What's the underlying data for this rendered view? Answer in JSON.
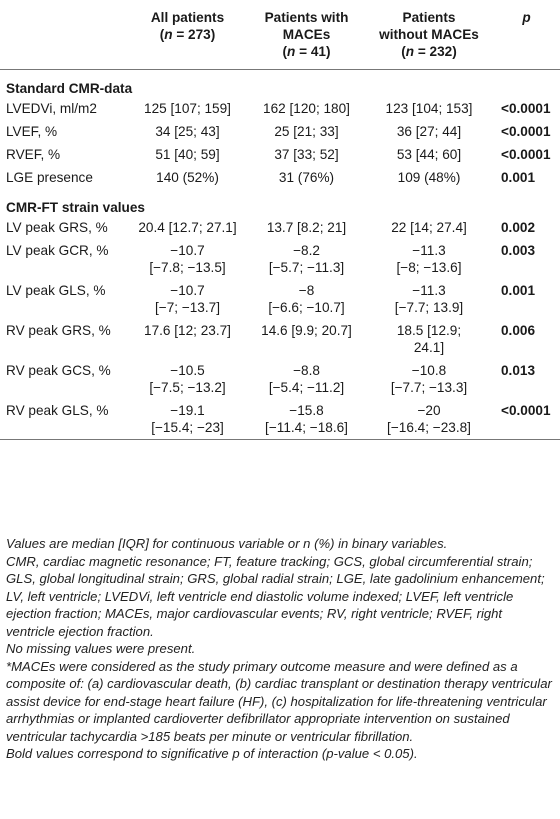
{
  "header": {
    "col1": {
      "line1": "All patients",
      "line2": "(n = 273)"
    },
    "col2": {
      "line1": "Patients with",
      "line2": "MACEs",
      "line3": "(n = 41)"
    },
    "col3": {
      "line1": "Patients",
      "line2": "without MACEs",
      "line3": "(n = 232)"
    },
    "col4": "p"
  },
  "sections": [
    {
      "title": "Standard CMR-data",
      "rows": [
        {
          "label": "LVEDVi, ml/m2",
          "all": [
            "125 [107; 159]"
          ],
          "with": [
            "162 [120; 180]"
          ],
          "without": [
            "123 [104; 153]"
          ],
          "p": "<0.0001"
        },
        {
          "label": "LVEF, %",
          "all": [
            "34 [25; 43]"
          ],
          "with": [
            "25 [21; 33]"
          ],
          "without": [
            "36 [27; 44]"
          ],
          "p": "<0.0001"
        },
        {
          "label": "RVEF, %",
          "all": [
            "51 [40; 59]"
          ],
          "with": [
            "37 [33; 52]"
          ],
          "without": [
            "53 [44; 60]"
          ],
          "p": "<0.0001"
        },
        {
          "label": "LGE presence",
          "all": [
            "140 (52%)"
          ],
          "with": [
            "31 (76%)"
          ],
          "without": [
            "109 (48%)"
          ],
          "p": "0.001"
        }
      ]
    },
    {
      "title": "CMR-FT strain values",
      "rows": [
        {
          "label": "LV peak GRS, %",
          "all": [
            "20.4 [12.7; 27.1]"
          ],
          "with": [
            "13.7 [8.2; 21]"
          ],
          "without": [
            "22 [14; 27.4]"
          ],
          "p": "0.002"
        },
        {
          "label": "LV peak GCR, %",
          "all": [
            "−10.7",
            "[−7.8; −13.5]"
          ],
          "with": [
            "−8.2",
            "[−5.7; −11.3]"
          ],
          "without": [
            "−11.3",
            "[−8; −13.6]"
          ],
          "p": "0.003"
        },
        {
          "label": "LV peak GLS, %",
          "all": [
            "−10.7",
            "[−7; −13.7]"
          ],
          "with": [
            "−8",
            "[−6.6; −10.7]"
          ],
          "without": [
            "−11.3",
            "[−7.7; 13.9]"
          ],
          "p": "0.001"
        },
        {
          "label": "RV peak GRS, %",
          "all": [
            "17.6 [12; 23.7]"
          ],
          "with": [
            "14.6 [9.9; 20.7]"
          ],
          "without": [
            "18.5 [12.9;",
            "24.1]"
          ],
          "p": "0.006"
        },
        {
          "label": "RV peak GCS, %",
          "all": [
            "−10.5",
            "[−7.5; −13.2]"
          ],
          "with": [
            "−8.8",
            "[−5.4; −11.2]"
          ],
          "without": [
            "−10.8",
            "[−7.7; −13.3]"
          ],
          "p": "0.013"
        },
        {
          "label": "RV peak GLS, %",
          "all": [
            "−19.1",
            "[−15.4; −23]"
          ],
          "with": [
            "−15.8",
            "[−11.4; −18.6]"
          ],
          "without": [
            "−20",
            "[−16.4; −23.8]"
          ],
          "p": "<0.0001"
        }
      ]
    }
  ],
  "footnotes": {
    "values_note": "Values are median [IQR] for continuous variable or n (%) in binary variables.",
    "abbreviations": "CMR, cardiac magnetic resonance; FT, feature tracking; GCS, global circumferential strain; GLS, global longitudinal strain; GRS, global radial strain; LGE, late gadolinium enhancement; LV, left ventricle; LVEDVi, left ventricle end diastolic volume indexed; LVEF, left ventricle ejection fraction; MACEs, major cardiovascular events; RV, right ventricle; RVEF, right ventricle ejection fraction.",
    "missing": "No missing values were present.",
    "maces_def": "*MACEs were considered as the study primary outcome measure and were defined as a composite of: (a) cardiovascular death, (b) cardiac transplant or destination therapy ventricular assist device for end-stage heart failure (HF), (c) hospitalization for life-threatening ventricular arrhythmias or implanted cardioverter defibrillator appropriate intervention on sustained ventricular tachycardia >185 beats per minute or ventricular fibrillation.",
    "bold_note": "Bold values correspond to significative p of interaction (p-value < 0.05)."
  }
}
